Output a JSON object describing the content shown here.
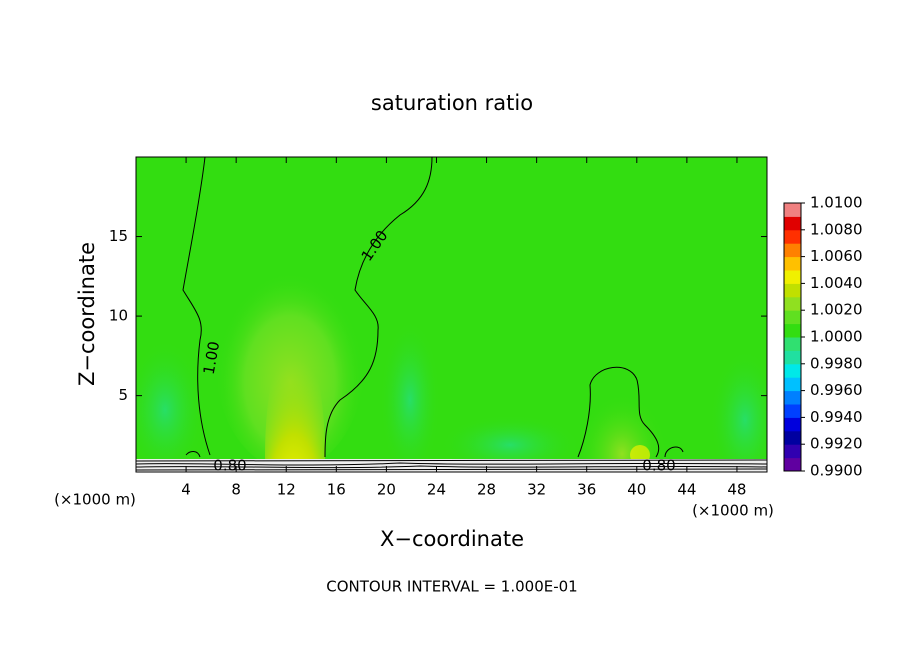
{
  "chart_data": {
    "type": "contour",
    "title": "saturation ratio",
    "xlabel": "X−coordinate",
    "ylabel": "Z−coordinate",
    "x_unit": "(×1000 m)",
    "xlim": [
      0,
      50.4
    ],
    "ylim": [
      0.2,
      20
    ],
    "xticks": [
      4,
      8,
      12,
      16,
      20,
      24,
      28,
      32,
      36,
      40,
      44,
      48
    ],
    "yticks": [
      5,
      10,
      15
    ],
    "contour_labels": [
      "1.00",
      "1.00",
      "0.80",
      "0.80"
    ],
    "footnote": "CONTOUR INTERVAL = 1.000E-01",
    "colorbar": {
      "lim": [
        0.99,
        1.01
      ],
      "ticks": [
        {
          "value": 0.99,
          "label": "0.9900"
        },
        {
          "value": 0.992,
          "label": "0.9920"
        },
        {
          "value": 0.994,
          "label": "0.9940"
        },
        {
          "value": 0.996,
          "label": "0.9960"
        },
        {
          "value": 0.998,
          "label": "0.9980"
        },
        {
          "value": 1.0,
          "label": "1.0000"
        },
        {
          "value": 1.002,
          "label": "1.0020"
        },
        {
          "value": 1.004,
          "label": "1.0040"
        },
        {
          "value": 1.006,
          "label": "1.0060"
        },
        {
          "value": 1.008,
          "label": "1.0080"
        },
        {
          "value": 1.01,
          "label": "1.0100"
        }
      ],
      "colors": [
        "#6000a0",
        "#3000b0",
        "#0000a0",
        "#0000dd",
        "#0040ff",
        "#0080ff",
        "#00c0ff",
        "#00e8e8",
        "#20e0a0",
        "#30e070",
        "#33dd11",
        "#60e020",
        "#90e020",
        "#c0e000",
        "#f0f000",
        "#ffc000",
        "#ff8000",
        "#ff3000",
        "#e00000",
        "#f08080"
      ]
    }
  }
}
